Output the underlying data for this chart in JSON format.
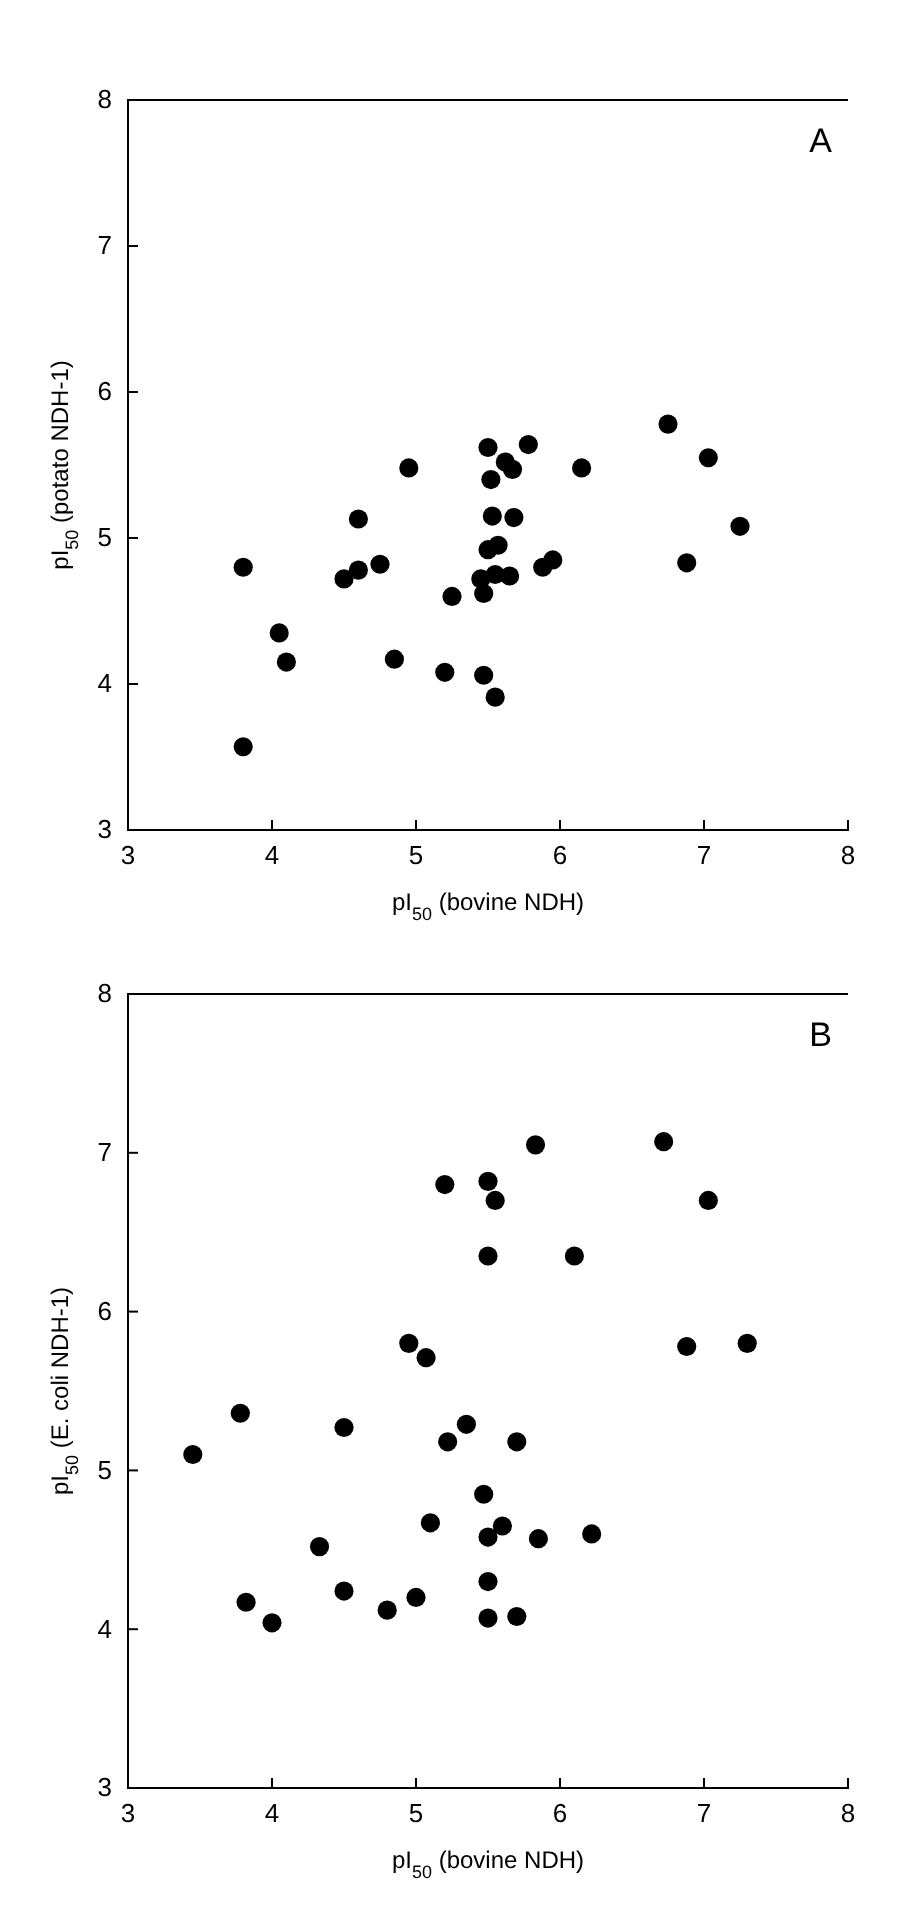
{
  "chart_data": [
    {
      "type": "scatter",
      "xlabel": "pI$_{50}$ (bovine NDH)",
      "ylabel": "pI$_{50}$ (potato NDH-1)",
      "annotations": [
        "A"
      ],
      "xlim": [
        3,
        8
      ],
      "ylim": [
        3,
        8
      ],
      "xticks": [
        3,
        4,
        5,
        6,
        7,
        8
      ],
      "yticks": [
        3,
        4,
        5,
        6,
        7,
        8
      ],
      "marker": "circle",
      "color": "#000000",
      "x": [
        3.8,
        3.8,
        4.05,
        4.1,
        4.5,
        4.6,
        4.6,
        4.75,
        4.85,
        4.95,
        5.2,
        5.25,
        5.45,
        5.47,
        5.47,
        5.5,
        5.5,
        5.52,
        5.53,
        5.55,
        5.55,
        5.57,
        5.62,
        5.65,
        5.67,
        5.68,
        5.78,
        5.88,
        5.95,
        6.15,
        6.75,
        6.88,
        7.03,
        7.25
      ],
      "values": [
        4.8,
        3.57,
        4.35,
        4.15,
        4.72,
        5.13,
        4.78,
        4.82,
        4.17,
        5.48,
        4.08,
        4.6,
        4.72,
        4.62,
        4.06,
        5.62,
        4.92,
        5.4,
        5.15,
        4.75,
        3.91,
        4.95,
        5.52,
        4.74,
        5.47,
        5.14,
        5.64,
        4.8,
        4.85,
        5.48,
        5.78,
        4.83,
        5.55,
        5.08
      ]
    },
    {
      "type": "scatter",
      "xlabel": "pI$_{50}$ (bovine NDH)",
      "ylabel": "pI$_{50}$ (E. coli NDH-1)",
      "annotations": [
        "B"
      ],
      "xlim": [
        3,
        8
      ],
      "ylim": [
        3,
        8
      ],
      "xticks": [
        3,
        4,
        5,
        6,
        7,
        8
      ],
      "yticks": [
        3,
        4,
        5,
        6,
        7,
        8
      ],
      "marker": "circle",
      "color": "#000000",
      "x": [
        3.45,
        3.78,
        3.82,
        4.0,
        4.33,
        4.5,
        4.5,
        4.8,
        4.95,
        5.0,
        5.07,
        5.1,
        5.2,
        5.22,
        5.35,
        5.47,
        5.5,
        5.5,
        5.5,
        5.5,
        5.5,
        5.55,
        5.6,
        5.7,
        5.7,
        5.83,
        5.85,
        6.1,
        6.22,
        6.72,
        6.88,
        7.03,
        7.3
      ],
      "values": [
        5.1,
        5.36,
        4.17,
        4.04,
        4.52,
        5.27,
        4.24,
        4.12,
        5.8,
        4.2,
        5.71,
        4.67,
        6.8,
        5.18,
        5.29,
        4.85,
        6.82,
        6.35,
        4.58,
        4.3,
        4.07,
        6.7,
        4.65,
        4.08,
        5.18,
        7.05,
        4.57,
        6.35,
        4.6,
        7.07,
        5.78,
        6.7,
        5.8
      ]
    }
  ]
}
